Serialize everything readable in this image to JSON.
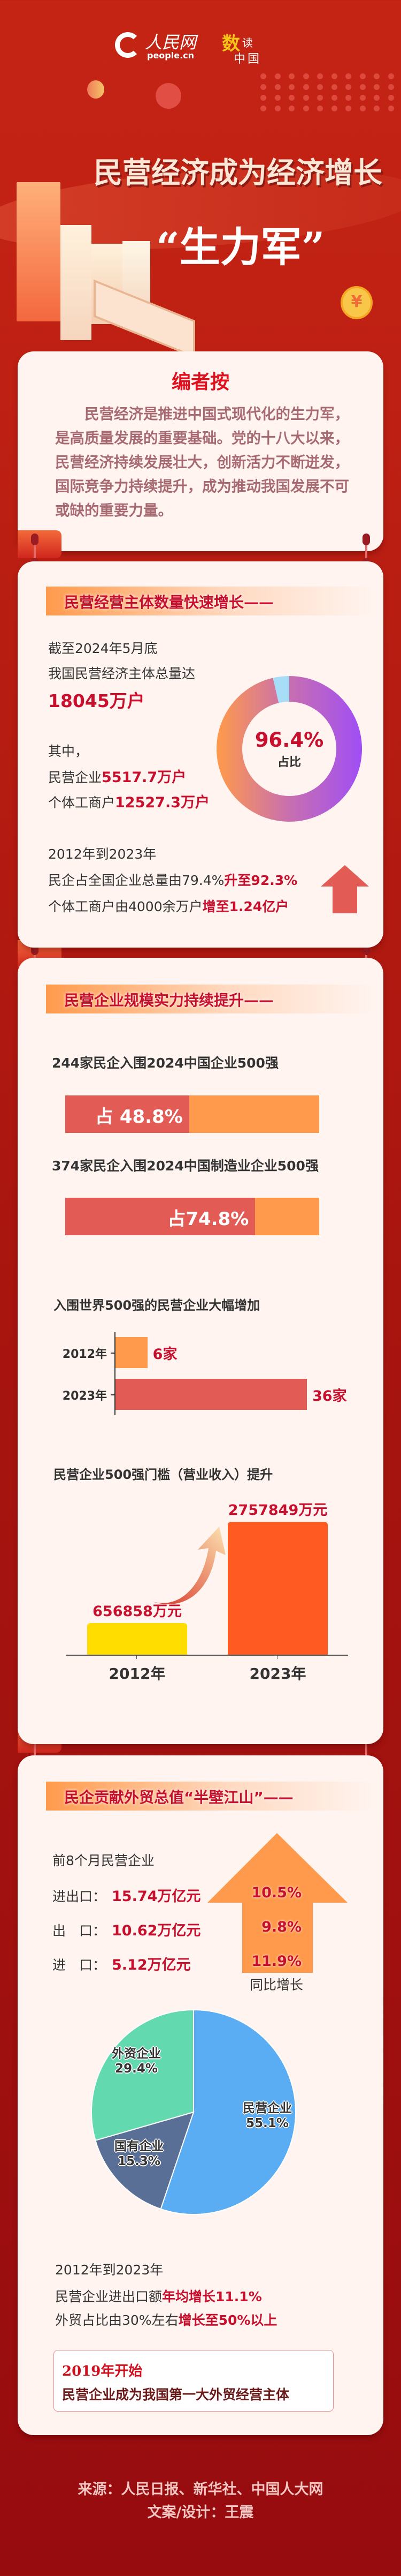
{
  "header": {
    "logo_text": "人民网",
    "logo_domain": "people.cn",
    "badge_main": "数",
    "badge_side": "读",
    "badge_bottom": "中国",
    "title_line1": "民营经济成为经济增长",
    "title_line2": "“生力军”",
    "coin_symbol": "¥"
  },
  "intro": {
    "heading": "编者按",
    "body": "民营经济是推进中国式现代化的生力军，是高质量发展的重要基础。党的十八大以来，民营经济持续发展壮大，创新活力不断迸发，国际竞争力持续提升，成为推动我国发展不可或缺的重要力量。"
  },
  "s2": {
    "title": "民营经营主体数量快速增长——",
    "as_of": "截至2024年5月底",
    "total_label": "我国民营经济主体总量达",
    "total_value": "18045万户",
    "among": "其中，",
    "enterprises_label": "民营企业",
    "enterprises_value": "5517.7万户",
    "individual_label": "个体工商户",
    "individual_value": "12527.3万户",
    "period": "2012年到2023年",
    "share_label": "民企占全国企业总量由79.4%",
    "share_value": "升至92.3%",
    "ind_growth_label": "个体工商户由4000余万户",
    "ind_growth_value": "增至1.24亿户",
    "donut_value": "96.4%",
    "donut_caption": "占比"
  },
  "s3": {
    "title": "民营企业规模实力持续提升——",
    "top500_caption": "244家民企入围2024中国企业500强",
    "top500_share_label": "占 48.8%",
    "mfg_caption": "374家民企入围2024中国制造业企业500强",
    "mfg_share_label": "占74.8%",
    "world_caption": "入围世界500强的民营企业大幅增加",
    "threshold_caption": "民营企业500强门槛（营业收入）提升"
  },
  "s4": {
    "title": "民企贡献外贸总值“半壁江山”——",
    "intro": "前8个月民营企业",
    "rows": [
      {
        "label": "进出口：",
        "value": "15.74万亿元",
        "growth": "10.5%"
      },
      {
        "label": "出　口：",
        "value": "10.62万亿元",
        "growth": "9.8%"
      },
      {
        "label": "进　口：",
        "value": "5.12万亿元",
        "growth": "11.9%"
      }
    ],
    "growth_caption": "同比增长",
    "period": "2012年到2023年",
    "l1_label": "民营企业进出口额",
    "l1_value": "年均增长11.1%",
    "l2_label": "外贸占比由30%左右",
    "l2_value": "增长至50%以上",
    "box_title": "2019年开始",
    "box_text": "民营企业成为我国第一大外贸经营主体"
  },
  "footer": {
    "source": "来源：人民日报、新华社、中国人大网",
    "credit": "文案/设计：王震"
  },
  "colors": {
    "background": "#C42414",
    "card": "#FFF4EF",
    "accent_red": "#C8102E",
    "bar_red": "#E35B55",
    "bar_orange": "#FF9A4C"
  },
  "chart_data": [
    {
      "type": "pie",
      "variant": "donut",
      "values": [
        96.4,
        3.6
      ],
      "center_label": "96.4%",
      "center_caption": "占比",
      "colors": [
        "#A04EF5",
        "#A8DDF8"
      ]
    },
    {
      "type": "bar",
      "variant": "progress",
      "values": [
        48.8,
        74.8
      ],
      "max": 100,
      "colors": [
        "#E35B55",
        "#FF9A4C"
      ]
    },
    {
      "type": "bar",
      "orientation": "horizontal",
      "title": "入围世界500强的民营企业大幅增加",
      "categories": [
        "2012年",
        "2023年"
      ],
      "values": [
        6,
        36
      ],
      "data_labels": [
        "6家",
        "36家"
      ],
      "colors": [
        "#FF9A4C",
        "#E35B55"
      ]
    },
    {
      "type": "bar",
      "orientation": "vertical",
      "title": "民营企业500强门槛（营业收入）提升",
      "categories": [
        "2012年",
        "2023年"
      ],
      "values": [
        656858,
        2757849
      ],
      "data_labels": [
        "656858万元",
        "2757849万元"
      ],
      "colors": [
        "#FFDD00",
        "#FF5A22"
      ]
    },
    {
      "type": "pie",
      "categories": [
        "民营企业",
        "国有企业",
        "外资企业"
      ],
      "values": [
        55.1,
        15.3,
        29.4
      ],
      "data_labels": [
        "55.1%",
        "15.3%",
        "29.4%"
      ],
      "colors": [
        "#5AADF2",
        "#5A6F96",
        "#62D9AE"
      ]
    }
  ]
}
